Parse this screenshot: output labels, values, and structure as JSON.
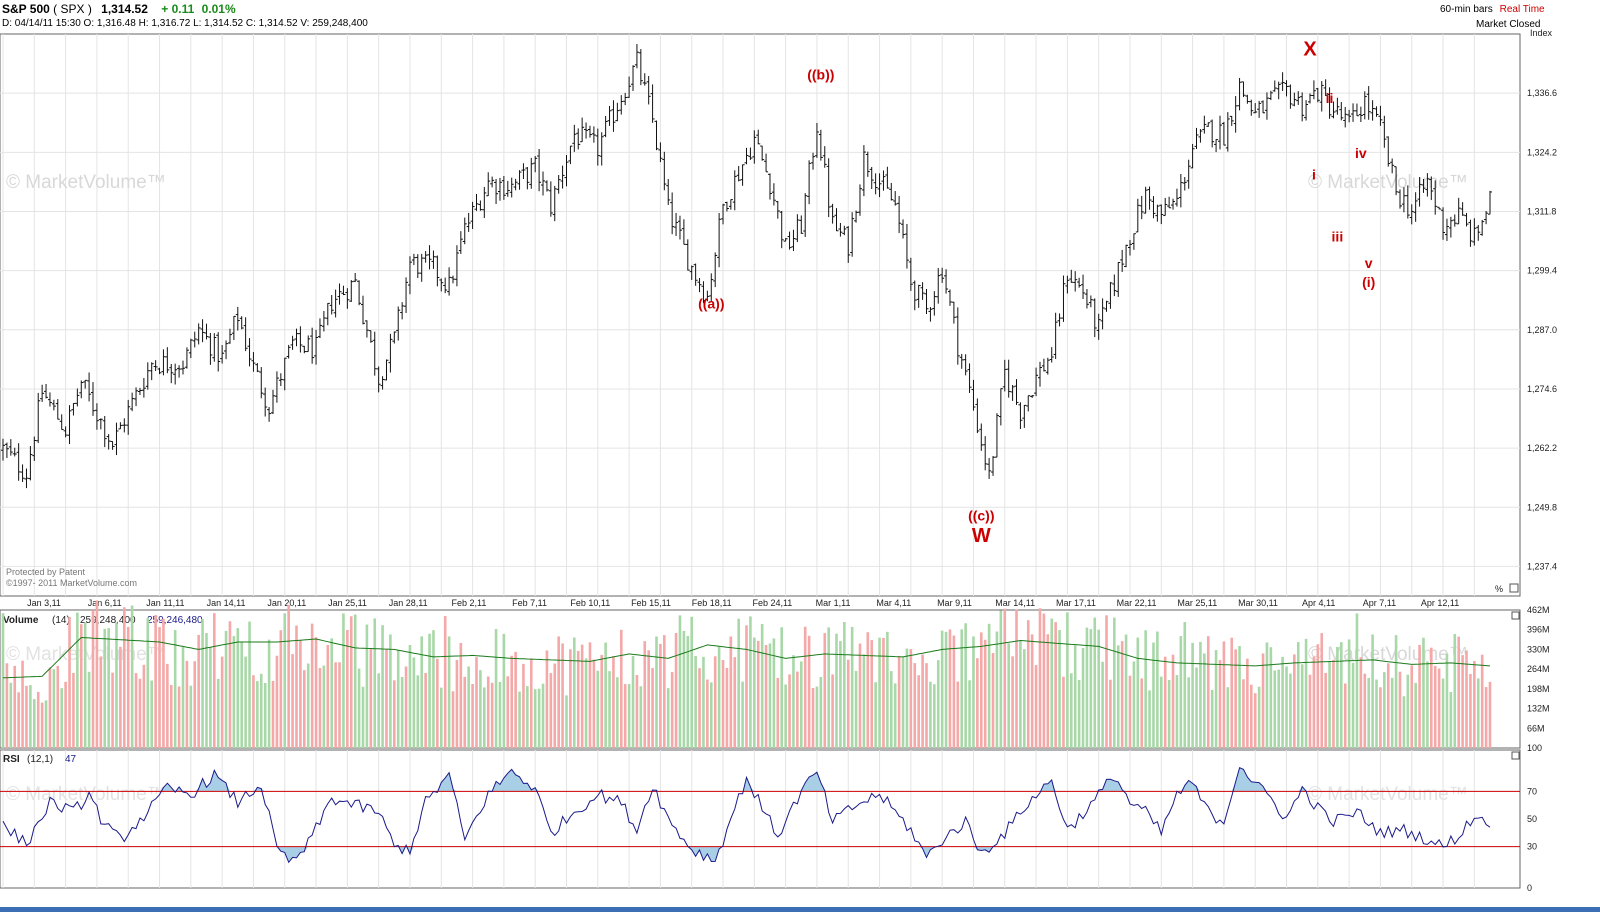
{
  "header": {
    "symbol": "S&P 500",
    "ticker": "( SPX )",
    "last": "1,314.52",
    "change": "+ 0.11",
    "change_pct": "0.01%",
    "line2": "D: 04/14/11 15:30  O: 1,316.48  H: 1,316.72  L: 1,314.52  C: 1,314.52  V: 259,248,400",
    "bars": "60-min bars",
    "realtime": "Real Time",
    "market_status": "Market Closed",
    "index_label": "Index"
  },
  "watermarks": {
    "text": "© MarketVolume™",
    "patent": "Protected by Patent",
    "copyright": "©1997- 2011 MarketVolume.com"
  },
  "volume_panel": {
    "title": "Volume",
    "period": "(14)",
    "value1": "259,248,400",
    "value2": "259,246,480"
  },
  "rsi_panel": {
    "title": "RSI",
    "period": "(12,1)",
    "value": "47"
  },
  "pct_label": "%",
  "colors": {
    "price_bar": "#111111",
    "wave_label": "#cc0000",
    "vol_up": "#a8d8a8",
    "vol_down": "#f4a8a8",
    "vol_ma": "#1a7a1a",
    "rsi_line": "#1a1a8a",
    "rsi_fill": "#a9cfe6",
    "rsi_band": "#cc0000",
    "grid": "#e4e4e4"
  },
  "chart_data": [
    {
      "type": "line",
      "name": "price",
      "x_ticks": [
        "Jan 3,11",
        "Jan 6,11",
        "Jan 11,11",
        "Jan 14,11",
        "Jan 20,11",
        "Jan 25,11",
        "Jan 28,11",
        "Feb 2,11",
        "Feb 7,11",
        "Feb 10,11",
        "Feb 15,11",
        "Feb 18,11",
        "Feb 24,11",
        "Mar 1,11",
        "Mar 4,11",
        "Mar 9,11",
        "Mar 14,11",
        "Mar 17,11",
        "Mar 22,11",
        "Mar 25,11",
        "Mar 30,11",
        "Apr 4,11",
        "Apr 7,11",
        "Apr 12,11"
      ],
      "y_ticks": [
        "1,336.6",
        "1,324.2",
        "1,311.8",
        "1,299.4",
        "1,287.0",
        "1,274.6",
        "1,262.2",
        "1,249.8",
        "1,237.4"
      ],
      "ylim": [
        1231.2,
        1349.0
      ],
      "key_points": [
        [
          0,
          1262
        ],
        [
          6,
          1257
        ],
        [
          10,
          1274
        ],
        [
          16,
          1266
        ],
        [
          20,
          1276
        ],
        [
          28,
          1263
        ],
        [
          32,
          1270
        ],
        [
          38,
          1280
        ],
        [
          46,
          1280
        ],
        [
          50,
          1287
        ],
        [
          56,
          1281
        ],
        [
          60,
          1290
        ],
        [
          64,
          1279
        ],
        [
          68,
          1271
        ],
        [
          74,
          1284
        ],
        [
          80,
          1283
        ],
        [
          84,
          1293
        ],
        [
          90,
          1297
        ],
        [
          96,
          1277
        ],
        [
          100,
          1285
        ],
        [
          104,
          1301
        ],
        [
          110,
          1300
        ],
        [
          114,
          1296
        ],
        [
          118,
          1308
        ],
        [
          124,
          1318
        ],
        [
          130,
          1317
        ],
        [
          136,
          1321
        ],
        [
          140,
          1313
        ],
        [
          146,
          1328
        ],
        [
          152,
          1325
        ],
        [
          158,
          1336
        ],
        [
          162,
          1343
        ],
        [
          166,
          1331
        ],
        [
          170,
          1312
        ],
        [
          176,
          1300
        ],
        [
          180,
          1294
        ],
        [
          184,
          1313
        ],
        [
          188,
          1320
        ],
        [
          192,
          1327
        ],
        [
          196,
          1318
        ],
        [
          200,
          1304
        ],
        [
          204,
          1309
        ],
        [
          208,
          1330
        ],
        [
          212,
          1309
        ],
        [
          216,
          1305
        ],
        [
          220,
          1323
        ],
        [
          224,
          1318
        ],
        [
          228,
          1313
        ],
        [
          232,
          1297
        ],
        [
          236,
          1291
        ],
        [
          240,
          1300
        ],
        [
          244,
          1284
        ],
        [
          248,
          1271
        ],
        [
          252,
          1256
        ],
        [
          256,
          1278
        ],
        [
          260,
          1270
        ],
        [
          264,
          1277
        ],
        [
          268,
          1282
        ],
        [
          272,
          1299
        ],
        [
          276,
          1295
        ],
        [
          280,
          1287
        ],
        [
          284,
          1297
        ],
        [
          288,
          1307
        ],
        [
          292,
          1315
        ],
        [
          296,
          1311
        ],
        [
          300,
          1314
        ],
        [
          304,
          1325
        ],
        [
          308,
          1329
        ],
        [
          312,
          1328
        ],
        [
          316,
          1338
        ],
        [
          320,
          1332
        ],
        [
          324,
          1335
        ],
        [
          328,
          1337
        ],
        [
          332,
          1334
        ],
        [
          336,
          1337
        ],
        [
          340,
          1333
        ],
        [
          344,
          1330
        ],
        [
          348,
          1335
        ],
        [
          352,
          1329
        ],
        [
          356,
          1316
        ],
        [
          360,
          1312
        ],
        [
          364,
          1318
        ],
        [
          368,
          1309
        ],
        [
          372,
          1311
        ],
        [
          376,
          1306
        ],
        [
          380,
          1314
        ]
      ],
      "bar_count": 381
    },
    {
      "type": "bar",
      "name": "volume",
      "y_ticks": [
        "462M",
        "396M",
        "330M",
        "264M",
        "198M",
        "132M",
        "66M",
        "100"
      ],
      "ylim": [
        0,
        462
      ],
      "ma_key_points": [
        [
          0,
          235
        ],
        [
          10,
          240
        ],
        [
          20,
          370
        ],
        [
          40,
          355
        ],
        [
          50,
          330
        ],
        [
          60,
          355
        ],
        [
          70,
          355
        ],
        [
          80,
          365
        ],
        [
          90,
          335
        ],
        [
          100,
          330
        ],
        [
          110,
          305
        ],
        [
          120,
          310
        ],
        [
          130,
          300
        ],
        [
          140,
          295
        ],
        [
          150,
          290
        ],
        [
          160,
          315
        ],
        [
          170,
          300
        ],
        [
          180,
          345
        ],
        [
          190,
          330
        ],
        [
          200,
          300
        ],
        [
          210,
          315
        ],
        [
          220,
          310
        ],
        [
          230,
          305
        ],
        [
          240,
          330
        ],
        [
          250,
          340
        ],
        [
          260,
          360
        ],
        [
          270,
          350
        ],
        [
          280,
          340
        ],
        [
          290,
          300
        ],
        [
          300,
          285
        ],
        [
          310,
          280
        ],
        [
          320,
          275
        ],
        [
          330,
          285
        ],
        [
          340,
          290
        ],
        [
          350,
          295
        ],
        [
          360,
          280
        ],
        [
          370,
          285
        ],
        [
          380,
          275
        ]
      ]
    },
    {
      "type": "line",
      "name": "RSI",
      "y_ticks": [
        "70",
        "50",
        "30",
        "0"
      ],
      "ylim": [
        0,
        100
      ],
      "bands": [
        30,
        70
      ],
      "key_points": [
        [
          0,
          45
        ],
        [
          6,
          32
        ],
        [
          12,
          62
        ],
        [
          18,
          55
        ],
        [
          22,
          68
        ],
        [
          26,
          45
        ],
        [
          30,
          35
        ],
        [
          36,
          52
        ],
        [
          42,
          72
        ],
        [
          48,
          68
        ],
        [
          54,
          82
        ],
        [
          60,
          62
        ],
        [
          66,
          75
        ],
        [
          70,
          28
        ],
        [
          74,
          18
        ],
        [
          78,
          32
        ],
        [
          84,
          65
        ],
        [
          90,
          60
        ],
        [
          96,
          55
        ],
        [
          100,
          30
        ],
        [
          104,
          28
        ],
        [
          108,
          62
        ],
        [
          114,
          82
        ],
        [
          118,
          35
        ],
        [
          124,
          68
        ],
        [
          130,
          85
        ],
        [
          136,
          72
        ],
        [
          140,
          40
        ],
        [
          146,
          55
        ],
        [
          152,
          68
        ],
        [
          158,
          62
        ],
        [
          162,
          42
        ],
        [
          166,
          75
        ],
        [
          170,
          50
        ],
        [
          176,
          28
        ],
        [
          182,
          20
        ],
        [
          186,
          50
        ],
        [
          190,
          80
        ],
        [
          194,
          58
        ],
        [
          198,
          38
        ],
        [
          204,
          70
        ],
        [
          208,
          84
        ],
        [
          212,
          48
        ],
        [
          218,
          60
        ],
        [
          224,
          68
        ],
        [
          228,
          55
        ],
        [
          232,
          42
        ],
        [
          236,
          22
        ],
        [
          240,
          35
        ],
        [
          246,
          48
        ],
        [
          250,
          25
        ],
        [
          256,
          40
        ],
        [
          262,
          62
        ],
        [
          268,
          78
        ],
        [
          272,
          42
        ],
        [
          278,
          60
        ],
        [
          284,
          82
        ],
        [
          288,
          62
        ],
        [
          292,
          55
        ],
        [
          296,
          40
        ],
        [
          300,
          68
        ],
        [
          304,
          76
        ],
        [
          308,
          55
        ],
        [
          312,
          48
        ],
        [
          316,
          90
        ],
        [
          320,
          75
        ],
        [
          324,
          65
        ],
        [
          328,
          50
        ],
        [
          332,
          72
        ],
        [
          336,
          58
        ],
        [
          340,
          48
        ],
        [
          346,
          55
        ],
        [
          352,
          40
        ],
        [
          358,
          42
        ],
        [
          364,
          35
        ],
        [
          368,
          30
        ],
        [
          372,
          38
        ],
        [
          376,
          52
        ],
        [
          380,
          48
        ]
      ]
    }
  ],
  "annotations": [
    {
      "text": "((a))",
      "bar": 181,
      "price": 1291.5
    },
    {
      "text": "((b))",
      "bar": 209,
      "price": 1339.5
    },
    {
      "text": "((c))",
      "bar": 250,
      "price": 1247.0
    },
    {
      "text": "W",
      "bar": 250,
      "price": 1242.5
    },
    {
      "text": "X",
      "bar": 334,
      "price": 1344.5
    },
    {
      "text": "ii",
      "bar": 339,
      "price": 1334.5
    },
    {
      "text": "i",
      "bar": 335,
      "price": 1318.5
    },
    {
      "text": "iv",
      "bar": 347,
      "price": 1323.0
    },
    {
      "text": "iii",
      "bar": 341,
      "price": 1305.5
    },
    {
      "text": "v",
      "bar": 349,
      "price": 1300.0
    },
    {
      "text": "(i)",
      "bar": 349,
      "price": 1296.0
    }
  ]
}
